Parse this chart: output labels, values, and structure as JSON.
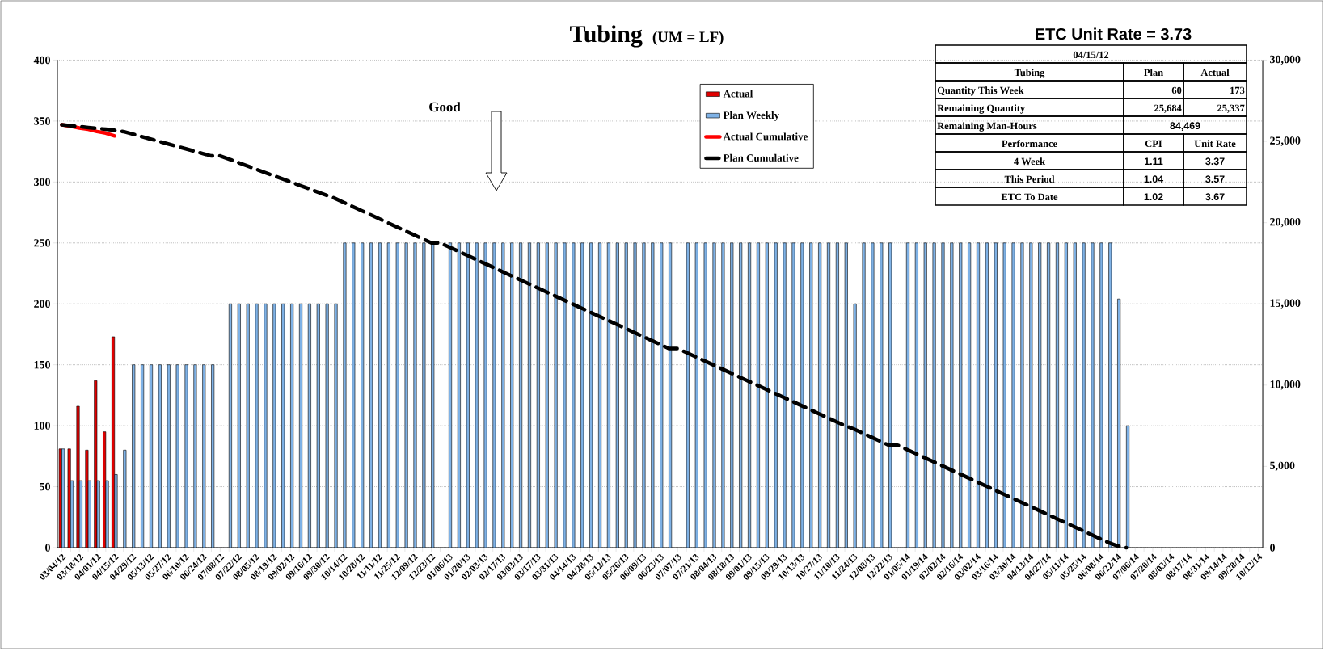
{
  "chart_data": {
    "type": "bar",
    "title": "Tubing",
    "subtitle": "(UM = LF)",
    "categories": [
      "03/04/12",
      null,
      "03/18/12",
      null,
      "04/01/12",
      null,
      "04/15/12",
      null,
      "04/29/12",
      null,
      "05/13/12",
      null,
      "05/27/12",
      null,
      "06/10/12",
      null,
      "06/24/12",
      null,
      "07/08/12",
      null,
      "07/22/12",
      null,
      "08/05/12",
      null,
      "08/19/12",
      null,
      "09/02/12",
      null,
      "09/16/12",
      null,
      "09/30/12",
      null,
      "10/14/12",
      null,
      "10/28/12",
      null,
      "11/11/12",
      null,
      "11/25/12",
      null,
      "12/09/12",
      null,
      "12/23/12",
      null,
      "01/06/13",
      null,
      "01/20/13",
      null,
      "02/03/13",
      null,
      "02/17/13",
      null,
      "03/03/13",
      null,
      "03/17/13",
      null,
      "03/31/13",
      null,
      "04/14/13",
      null,
      "04/28/13",
      null,
      "05/12/13",
      null,
      "05/26/13",
      null,
      "06/09/13",
      null,
      "06/23/13",
      null,
      "07/07/13",
      null,
      "07/21/13",
      null,
      "08/04/13",
      null,
      "08/18/13",
      null,
      "09/01/13",
      null,
      "09/15/13",
      null,
      "09/29/13",
      null,
      "10/13/13",
      null,
      "10/27/13",
      null,
      "11/10/13",
      null,
      "11/24/13",
      null,
      "12/08/13",
      null,
      "12/22/13",
      null,
      "01/05/14",
      null,
      "01/19/14",
      null,
      "02/02/14",
      null,
      "02/16/14",
      null,
      "03/02/14",
      null,
      "03/16/14",
      null,
      "03/30/14",
      null,
      "04/13/14",
      null,
      "04/27/14",
      null,
      "05/11/14",
      null,
      "05/25/14",
      null,
      "06/08/14",
      null,
      "06/22/14",
      null,
      "07/06/14",
      null,
      "07/20/14",
      null,
      "08/03/14",
      null,
      "08/17/14",
      null,
      "08/31/14",
      null,
      "09/14/14",
      null,
      "09/28/14",
      null,
      "10/12/14"
    ],
    "series": [
      {
        "name": "Actual",
        "color": "#e00000",
        "values": [
          81,
          81,
          116,
          80,
          137,
          95,
          173,
          null,
          null,
          null,
          null,
          null,
          null,
          null,
          null,
          null,
          null,
          null,
          null,
          null,
          null,
          null,
          null,
          null,
          null,
          null,
          null,
          null,
          null,
          null,
          null,
          null,
          null,
          null,
          null,
          null,
          null,
          null,
          null,
          null,
          null,
          null,
          null,
          null,
          null,
          null,
          null,
          null,
          null,
          null,
          null,
          null,
          null,
          null,
          null,
          null,
          null,
          null,
          null,
          null,
          null,
          null,
          null,
          null,
          null,
          null,
          null,
          null,
          null,
          null,
          null,
          null,
          null,
          null,
          null,
          null,
          null,
          null,
          null,
          null,
          null,
          null,
          null,
          null,
          null,
          null,
          null,
          null,
          null,
          null,
          null,
          null,
          null,
          null,
          null,
          null,
          null,
          null,
          null,
          null,
          null,
          null,
          null,
          null,
          null,
          null,
          null,
          null,
          null,
          null,
          null,
          null,
          null,
          null,
          null,
          null,
          null,
          null,
          null,
          null,
          null,
          null,
          null,
          null,
          null,
          null,
          null,
          null,
          null,
          null,
          null,
          null,
          null,
          null,
          null,
          null,
          null
        ]
      },
      {
        "name": "Plan Weekly",
        "color": "#7fb2e6",
        "values": [
          81,
          55,
          55,
          55,
          55,
          55,
          60,
          80,
          150,
          150,
          150,
          150,
          150,
          150,
          150,
          150,
          150,
          150,
          null,
          200,
          200,
          200,
          200,
          200,
          200,
          200,
          200,
          200,
          200,
          200,
          200,
          200,
          250,
          250,
          250,
          250,
          250,
          250,
          250,
          250,
          250,
          250,
          250,
          null,
          250,
          250,
          250,
          250,
          250,
          250,
          250,
          250,
          250,
          250,
          250,
          250,
          250,
          250,
          250,
          250,
          250,
          250,
          250,
          250,
          250,
          250,
          250,
          250,
          250,
          250,
          null,
          250,
          250,
          250,
          250,
          250,
          250,
          250,
          250,
          250,
          250,
          250,
          250,
          250,
          250,
          250,
          250,
          250,
          250,
          250,
          200,
          250,
          250,
          250,
          250,
          null,
          250,
          250,
          250,
          250,
          250,
          250,
          250,
          250,
          250,
          250,
          250,
          250,
          250,
          250,
          250,
          250,
          250,
          250,
          250,
          250,
          250,
          250,
          250,
          250,
          204,
          100,
          null,
          null,
          null,
          null,
          null,
          null,
          null,
          null,
          null,
          null,
          null,
          null,
          null,
          null,
          null
        ]
      },
      {
        "name": "Actual Cumulative",
        "type": "line",
        "axis": "y2",
        "color": "#ff0000",
        "line_style": "solid",
        "values": [
          26019,
          25938,
          25822,
          25742,
          25605,
          25510,
          25337,
          null,
          null,
          null,
          null,
          null,
          null,
          null,
          null,
          null,
          null,
          null,
          null,
          null,
          null,
          null,
          null,
          null,
          null,
          null,
          null,
          null,
          null,
          null,
          null,
          null,
          null,
          null,
          null,
          null,
          null,
          null,
          null,
          null,
          null,
          null,
          null,
          null,
          null,
          null,
          null,
          null,
          null,
          null,
          null,
          null,
          null,
          null,
          null,
          null,
          null,
          null,
          null,
          null,
          null,
          null,
          null,
          null,
          null,
          null,
          null,
          null,
          null,
          null,
          null,
          null,
          null,
          null,
          null,
          null,
          null,
          null,
          null,
          null,
          null,
          null,
          null,
          null,
          null,
          null,
          null,
          null,
          null,
          null,
          null,
          null,
          null,
          null,
          null,
          null,
          null,
          null,
          null,
          null,
          null,
          null,
          null,
          null,
          null,
          null,
          null,
          null,
          null,
          null,
          null,
          null,
          null,
          null,
          null,
          null,
          null,
          null,
          null,
          null,
          null,
          null,
          null,
          null,
          null,
          null,
          null,
          null,
          null,
          null,
          null,
          null,
          null,
          null,
          null,
          null,
          null
        ]
      },
      {
        "name": "Plan Cumulative",
        "type": "line",
        "axis": "y2",
        "color": "#000000",
        "line_style": "dashed",
        "values": [
          26019,
          25964,
          25909,
          25854,
          25799,
          25744,
          25684,
          25604,
          25454,
          25304,
          25154,
          25004,
          24854,
          24704,
          24554,
          24404,
          24254,
          24104,
          24104,
          23904,
          23704,
          23504,
          23304,
          23104,
          22904,
          22704,
          22504,
          22304,
          22104,
          21904,
          21704,
          21504,
          21254,
          21004,
          20754,
          20504,
          20254,
          20004,
          19754,
          19504,
          19254,
          19004,
          18754,
          18754,
          18504,
          18254,
          18004,
          17754,
          17504,
          17254,
          17004,
          16754,
          16504,
          16254,
          16004,
          15754,
          15504,
          15254,
          15004,
          14754,
          14504,
          14254,
          14004,
          13754,
          13504,
          13254,
          13004,
          12754,
          12504,
          12254,
          12254,
          12004,
          11754,
          11504,
          11254,
          11004,
          10754,
          10504,
          10254,
          10004,
          9754,
          9504,
          9254,
          9004,
          8754,
          8504,
          8254,
          8004,
          7754,
          7504,
          7304,
          7054,
          6804,
          6554,
          6304,
          6304,
          6054,
          5804,
          5554,
          5304,
          5054,
          4804,
          4554,
          4304,
          4054,
          3804,
          3554,
          3304,
          3054,
          2804,
          2554,
          2304,
          2054,
          1804,
          1554,
          1304,
          1054,
          804,
          554,
          304,
          100,
          0,
          null,
          null,
          null,
          null,
          null,
          null,
          null,
          null,
          null,
          null,
          null,
          null,
          null,
          null,
          null
        ]
      }
    ],
    "ylim": [
      0,
      400
    ],
    "yticks": [
      0,
      50,
      100,
      150,
      200,
      250,
      300,
      350,
      400
    ],
    "y2lim": [
      0,
      30000
    ],
    "y2ticks": [
      0,
      {
        "value": 5000,
        "label": "5,000"
      },
      {
        "value": 10000,
        "label": "10,000"
      },
      {
        "value": 15000,
        "label": "15,000"
      },
      {
        "value": 20000,
        "label": "20,000"
      },
      {
        "value": 25000,
        "label": "25,000"
      },
      {
        "value": 30000,
        "label": "30,000"
      }
    ],
    "grid": "y",
    "legend": "top",
    "annotations": [
      "Good",
      "ETC Unit Rate = 3.73",
      "04/15/12",
      "Tubing",
      "Plan",
      "Actual",
      "Quantity This Week",
      "60",
      "173",
      "Remaining Quantity",
      "25,684",
      "25,337",
      "Remaining Man-Hours",
      "84,469",
      "Performance",
      "CPI",
      "Unit Rate",
      "4 Week",
      "1.11",
      "3.37",
      "This Period",
      "1.04",
      "3.57",
      "ETC To Date",
      "1.02",
      "3.67"
    ]
  }
}
